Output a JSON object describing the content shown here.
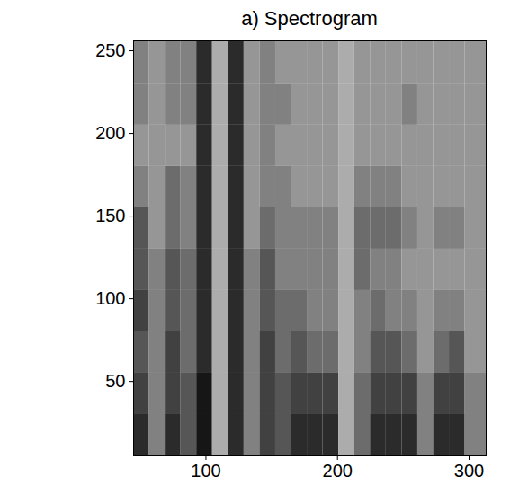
{
  "chart_data": {
    "type": "heatmap",
    "title": "a) Spectrogram",
    "x_edges": [
      45,
      57,
      69,
      81,
      93,
      105,
      117,
      129,
      141,
      153,
      165,
      177,
      189,
      201,
      213,
      225,
      237,
      249,
      261,
      273,
      285,
      297,
      313
    ],
    "y_edges": [
      5,
      30,
      55,
      80,
      105,
      130,
      155,
      180,
      205,
      230,
      256
    ],
    "cells": [
      [
        9,
        5,
        9,
        7,
        10,
        3,
        9,
        5,
        8,
        7,
        9,
        9,
        9,
        3,
        6,
        9,
        9,
        9,
        5,
        9,
        9,
        5
      ],
      [
        8,
        5,
        8,
        7,
        10,
        3,
        9,
        5,
        8,
        7,
        8,
        8,
        8,
        3,
        6,
        8,
        8,
        8,
        5,
        8,
        8,
        5
      ],
      [
        7,
        5,
        8,
        6,
        9,
        3,
        9,
        5,
        8,
        6,
        7,
        6,
        6,
        3,
        5,
        7,
        7,
        6,
        4,
        6,
        7,
        4
      ],
      [
        8,
        5,
        7,
        6,
        9,
        3,
        9,
        5,
        7,
        6,
        6,
        5,
        5,
        3,
        5,
        6,
        5,
        5,
        4,
        5,
        5,
        4
      ],
      [
        7,
        5,
        7,
        6,
        9,
        3,
        9,
        5,
        7,
        5,
        5,
        5,
        5,
        3,
        6,
        5,
        5,
        4,
        4,
        4,
        4,
        4
      ],
      [
        7,
        4,
        6,
        5,
        9,
        3,
        9,
        4,
        6,
        5,
        5,
        5,
        5,
        3,
        6,
        6,
        6,
        5,
        4,
        5,
        5,
        4
      ],
      [
        5,
        4,
        6,
        5,
        9,
        3,
        9,
        4,
        5,
        5,
        4,
        4,
        4,
        3,
        5,
        5,
        5,
        4,
        4,
        4,
        4,
        4
      ],
      [
        4,
        4,
        4,
        4,
        9,
        3,
        9,
        4,
        5,
        4,
        4,
        4,
        4,
        3,
        4,
        4,
        4,
        4,
        4,
        4,
        4,
        4
      ],
      [
        5,
        4,
        5,
        5,
        9,
        3,
        9,
        4,
        5,
        5,
        4,
        4,
        4,
        3,
        4,
        4,
        4,
        5,
        4,
        4,
        4,
        4
      ],
      [
        5,
        4,
        5,
        5,
        9,
        3,
        9,
        4,
        5,
        4,
        4,
        4,
        4,
        3,
        4,
        4,
        4,
        4,
        4,
        4,
        4,
        4
      ]
    ],
    "zlim": [
      0,
      10
    ],
    "xlim": [
      45,
      313
    ],
    "ylim": [
      5,
      256
    ],
    "xticks": [
      100,
      200,
      300
    ],
    "yticks": [
      50,
      100,
      150,
      200,
      250
    ],
    "grid": false
  }
}
